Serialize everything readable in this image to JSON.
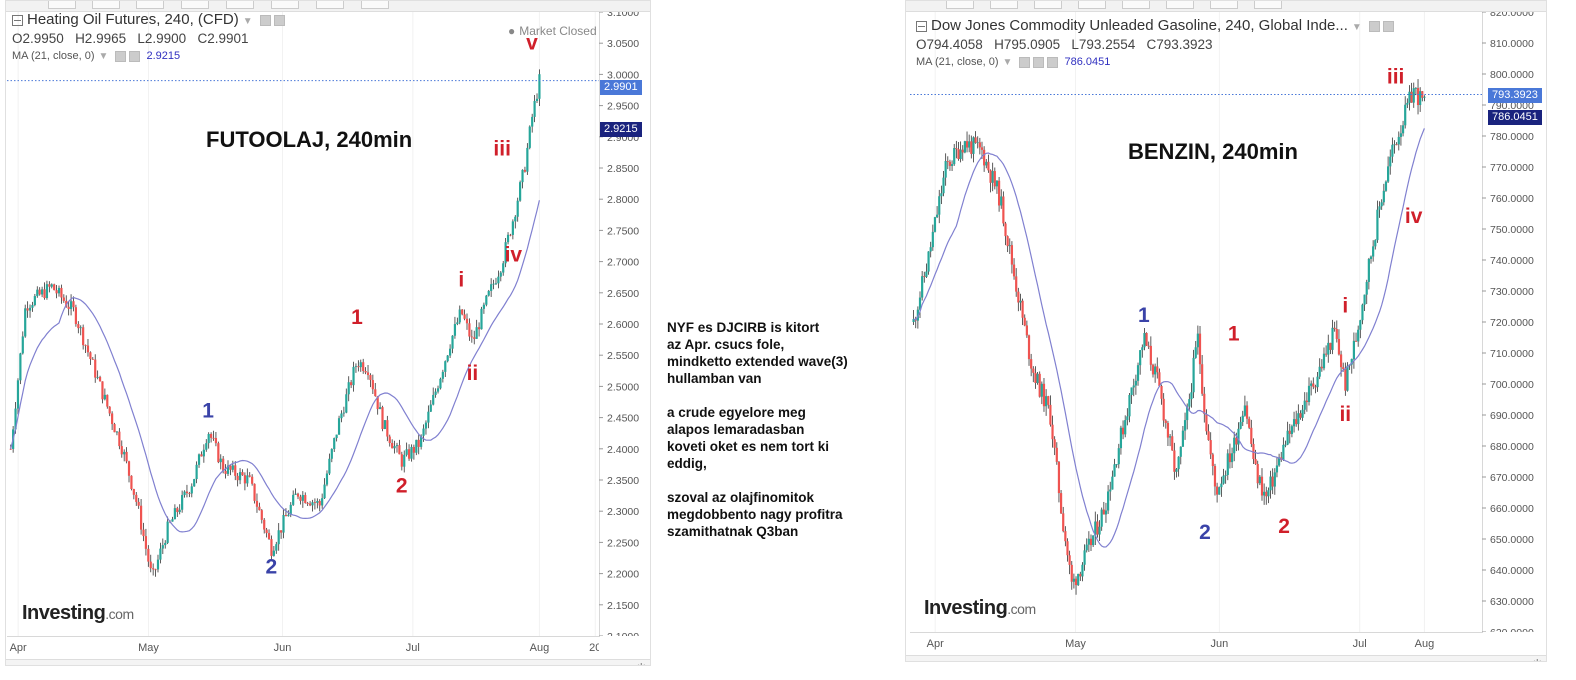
{
  "note": {
    "text": "NYF es DJCIRB is kitort\naz Apr. csucs fole,\nmindketto extended wave(3)\nhullamban van\n\na crude egyelore meg\nalapos lemaradasban\nkoveti oket es nem tort ki\neddig,\n\nszoval az olajfinomitok\nmegdobbento nagy profitra\nszamithatnak Q3ban"
  },
  "colors": {
    "up": "#26a69a",
    "down": "#ef5350",
    "ma": "#8080d0",
    "wave_red": "#d01f2a",
    "wave_blue": "#3a43a8",
    "last_price_tag": "#4a78d8",
    "ma_tag": "#1a237e"
  },
  "chart_data": [
    {
      "type": "candlestick",
      "instrument": "Heating Oil Futures, 240, (CFD)",
      "legend": {
        "title": "Heating Oil Futures, 240, (CFD)",
        "open": "O2.9950",
        "high": "H2.9965",
        "low": "L2.9900",
        "close": "C2.9901",
        "ma_label": "MA (21, close, 0)",
        "ma_value": "2.9215"
      },
      "market_status": "Market Closed",
      "annotation_title": "FUTOOLAJ, 240min",
      "logo": {
        "main": "Investing",
        "suffix": ".com"
      },
      "ylim": [
        2.1,
        3.1
      ],
      "y_ticks": [
        "3.1000",
        "3.0500",
        "3.0000",
        "2.9500",
        "2.9000",
        "2.8500",
        "2.8000",
        "2.7500",
        "2.7000",
        "2.6500",
        "2.6000",
        "2.5500",
        "2.5000",
        "2.4500",
        "2.4000",
        "2.3500",
        "2.3000",
        "2.2500",
        "2.2000",
        "2.1500",
        "2.1000"
      ],
      "x_ticks": [
        "Apr",
        "May",
        "Jun",
        "Jul",
        "Aug",
        "20"
      ],
      "last_price": "2.9901",
      "ma_price": "2.9215",
      "price_path": [
        {
          "date": "2017-03-27",
          "price": 2.4
        },
        {
          "date": "2017-03-31",
          "price": 2.63
        },
        {
          "date": "2017-04-07",
          "price": 2.66
        },
        {
          "date": "2017-04-13",
          "price": 2.62
        },
        {
          "date": "2017-04-20",
          "price": 2.5
        },
        {
          "date": "2017-04-26",
          "price": 2.4
        },
        {
          "date": "2017-04-30",
          "price": 2.31
        },
        {
          "date": "2017-05-04",
          "price": 2.19
        },
        {
          "date": "2017-05-08",
          "price": 2.27
        },
        {
          "date": "2017-05-15",
          "price": 2.35
        },
        {
          "date": "2017-05-19",
          "price": 2.43
        },
        {
          "date": "2017-05-23",
          "price": 2.37
        },
        {
          "date": "2017-05-30",
          "price": 2.35
        },
        {
          "date": "2017-06-05",
          "price": 2.24
        },
        {
          "date": "2017-06-12",
          "price": 2.33
        },
        {
          "date": "2017-06-18",
          "price": 2.31
        },
        {
          "date": "2017-06-23",
          "price": 2.44
        },
        {
          "date": "2017-06-28",
          "price": 2.54
        },
        {
          "date": "2017-07-01",
          "price": 2.53
        },
        {
          "date": "2017-07-05",
          "price": 2.44
        },
        {
          "date": "2017-07-10",
          "price": 2.38
        },
        {
          "date": "2017-07-15",
          "price": 2.41
        },
        {
          "date": "2017-07-19",
          "price": 2.49
        },
        {
          "date": "2017-07-23",
          "price": 2.57
        },
        {
          "date": "2017-07-26",
          "price": 2.62
        },
        {
          "date": "2017-07-29",
          "price": 2.57
        },
        {
          "date": "2017-08-02",
          "price": 2.64
        },
        {
          "date": "2017-08-06",
          "price": 2.7
        },
        {
          "date": "2017-08-09",
          "price": 2.77
        },
        {
          "date": "2017-08-12",
          "price": 2.85
        },
        {
          "date": "2017-08-14",
          "price": 2.93
        },
        {
          "date": "2017-08-16",
          "price": 2.99
        }
      ],
      "wave_labels": [
        {
          "label": "1",
          "date": "2017-05-19",
          "price": 2.45,
          "color": "blue"
        },
        {
          "label": "2",
          "date": "2017-06-05",
          "price": 2.2,
          "color": "blue"
        },
        {
          "label": "1",
          "date": "2017-06-28",
          "price": 2.6,
          "color": "red"
        },
        {
          "label": "2",
          "date": "2017-07-10",
          "price": 2.33,
          "color": "red"
        },
        {
          "label": "i",
          "date": "2017-07-26",
          "price": 2.66,
          "color": "red"
        },
        {
          "label": "ii",
          "date": "2017-07-29",
          "price": 2.51,
          "color": "red"
        },
        {
          "label": "iii",
          "date": "2017-08-06",
          "price": 2.87,
          "color": "red"
        },
        {
          "label": "iv",
          "date": "2017-08-09",
          "price": 2.7,
          "color": "red"
        },
        {
          "label": "v",
          "date": "2017-08-14",
          "price": 3.04,
          "color": "red"
        }
      ]
    },
    {
      "type": "candlestick",
      "instrument": "Dow Jones Commodity Unleaded Gasoline, 240, Global Inde...",
      "legend": {
        "title": "Dow Jones Commodity Unleaded Gasoline, 240, Global Inde...",
        "open": "O794.4058",
        "high": "H795.0905",
        "low": "L793.2554",
        "close": "C793.3923",
        "ma_label": "MA (21, close, 0)",
        "ma_value": "786.0451"
      },
      "annotation_title": "BENZIN, 240min",
      "logo": {
        "main": "Investing",
        "suffix": ".com"
      },
      "ylim": [
        620,
        820
      ],
      "y_ticks": [
        "820.0000",
        "810.0000",
        "800.0000",
        "790.0000",
        "780.0000",
        "770.0000",
        "760.0000",
        "750.0000",
        "740.0000",
        "730.0000",
        "720.0000",
        "710.0000",
        "700.0000",
        "690.0000",
        "680.0000",
        "670.0000",
        "660.0000",
        "650.0000",
        "640.0000",
        "630.0000",
        "620.0000"
      ],
      "x_ticks": [
        "Apr",
        "May",
        "Jun",
        "Jul",
        "Aug"
      ],
      "last_price": "793.3923",
      "ma_price": "786.0451",
      "price_path": [
        {
          "date": "2017-03-25",
          "price": 720
        },
        {
          "date": "2017-03-29",
          "price": 740
        },
        {
          "date": "2017-04-03",
          "price": 770
        },
        {
          "date": "2017-04-08",
          "price": 778
        },
        {
          "date": "2017-04-13",
          "price": 775
        },
        {
          "date": "2017-04-18",
          "price": 760
        },
        {
          "date": "2017-04-22",
          "price": 735
        },
        {
          "date": "2017-04-27",
          "price": 705
        },
        {
          "date": "2017-05-02",
          "price": 690
        },
        {
          "date": "2017-05-05",
          "price": 660
        },
        {
          "date": "2017-05-08",
          "price": 635
        },
        {
          "date": "2017-05-12",
          "price": 645
        },
        {
          "date": "2017-05-17",
          "price": 660
        },
        {
          "date": "2017-05-21",
          "price": 680
        },
        {
          "date": "2017-05-25",
          "price": 700
        },
        {
          "date": "2017-05-28",
          "price": 715
        },
        {
          "date": "2017-06-01",
          "price": 700
        },
        {
          "date": "2017-06-06",
          "price": 670
        },
        {
          "date": "2017-06-09",
          "price": 690
        },
        {
          "date": "2017-06-12",
          "price": 715
        },
        {
          "date": "2017-06-14",
          "price": 690
        },
        {
          "date": "2017-06-17",
          "price": 665
        },
        {
          "date": "2017-06-22",
          "price": 680
        },
        {
          "date": "2017-06-25",
          "price": 695
        },
        {
          "date": "2017-06-28",
          "price": 672
        },
        {
          "date": "2017-07-01",
          "price": 663
        },
        {
          "date": "2017-07-06",
          "price": 680
        },
        {
          "date": "2017-07-12",
          "price": 695
        },
        {
          "date": "2017-07-16",
          "price": 705
        },
        {
          "date": "2017-07-20",
          "price": 717
        },
        {
          "date": "2017-07-23",
          "price": 700
        },
        {
          "date": "2017-07-26",
          "price": 715
        },
        {
          "date": "2017-07-29",
          "price": 735
        },
        {
          "date": "2017-08-02",
          "price": 760
        },
        {
          "date": "2017-08-05",
          "price": 775
        },
        {
          "date": "2017-08-08",
          "price": 785
        },
        {
          "date": "2017-08-11",
          "price": 795
        },
        {
          "date": "2017-08-14",
          "price": 790
        }
      ],
      "wave_labels": [
        {
          "label": "1",
          "date": "2017-05-28",
          "price": 720,
          "color": "blue"
        },
        {
          "label": "2",
          "date": "2017-06-14",
          "price": 650,
          "color": "blue"
        },
        {
          "label": "1",
          "date": "2017-06-22",
          "price": 714,
          "color": "red"
        },
        {
          "label": "2",
          "date": "2017-07-06",
          "price": 652,
          "color": "red"
        },
        {
          "label": "i",
          "date": "2017-07-23",
          "price": 723,
          "color": "red"
        },
        {
          "label": "ii",
          "date": "2017-07-23",
          "price": 688,
          "color": "red"
        },
        {
          "label": "iii",
          "date": "2017-08-06",
          "price": 797,
          "color": "red"
        },
        {
          "label": "iv",
          "date": "2017-08-11",
          "price": 752,
          "color": "red"
        }
      ]
    }
  ]
}
